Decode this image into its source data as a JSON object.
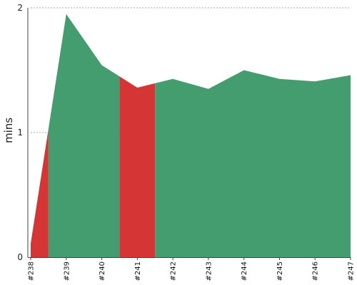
{
  "chart_data": {
    "type": "area",
    "x": [
      "#238",
      "#239",
      "#240",
      "#241",
      "#242",
      "#243",
      "#244",
      "#245",
      "#246",
      "#247"
    ],
    "values": [
      0.11,
      1.95,
      1.54,
      1.36,
      1.43,
      1.35,
      1.5,
      1.43,
      1.41,
      1.46
    ],
    "segments": [
      {
        "status": "failed",
        "from": "#238",
        "to": "#238.5"
      },
      {
        "status": "success",
        "from": "#238.5",
        "to": "#240.5"
      },
      {
        "status": "failed",
        "from": "#240.5",
        "to": "#241.5"
      },
      {
        "status": "success",
        "from": "#241.5",
        "to": "#247"
      }
    ],
    "ylabel": "mins",
    "xlabel": "",
    "ylim": [
      0,
      2
    ],
    "yticks": [
      "0",
      "1",
      "2"
    ],
    "grid": true,
    "colors": {
      "success": "#449d6e",
      "failed": "#d63535",
      "grid": "#888888",
      "axis": "#444444"
    }
  }
}
